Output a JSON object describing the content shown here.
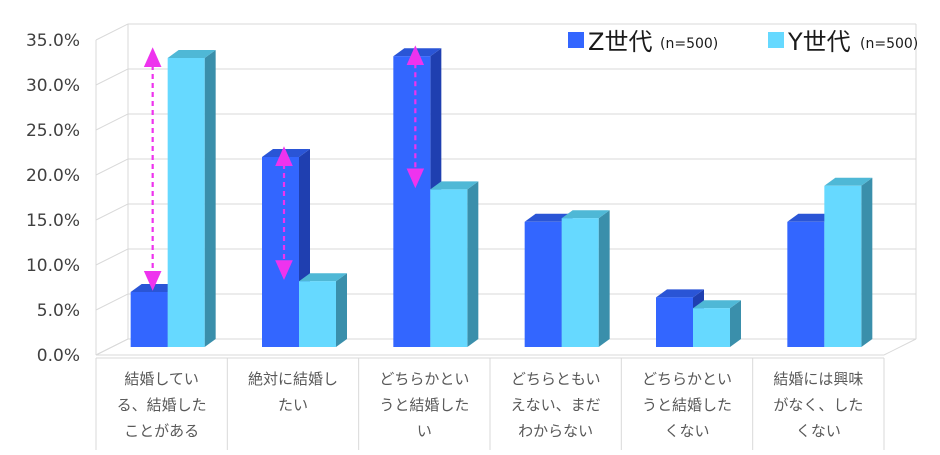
{
  "chart_data": {
    "type": "bar",
    "categories": [
      [
        "結婚してい",
        "る、結婚した",
        "ことがある"
      ],
      [
        "絶対に結婚し",
        "たい"
      ],
      [
        "どちらかとい",
        "うと結婚した",
        "い"
      ],
      [
        "どちらともい",
        "えない、まだ",
        "わからない"
      ],
      [
        "どちらかとい",
        "うと結婚した",
        "くない"
      ],
      [
        "結婚には興味",
        "がなく、した",
        "くない"
      ]
    ],
    "series": [
      {
        "name": "Z世代",
        "note": "(n=500)",
        "values": [
          7.0,
          22.0,
          33.2,
          14.8,
          6.4,
          14.8
        ]
      },
      {
        "name": "Y世代",
        "note": "(n=500)",
        "values": [
          33.0,
          8.2,
          18.4,
          15.2,
          5.2,
          18.8
        ]
      }
    ],
    "ylim": [
      0,
      35
    ],
    "yticks": [
      "0.0%",
      "5.0%",
      "10.0%",
      "15.0%",
      "20.0%",
      "25.0%",
      "30.0%",
      "35.0%"
    ],
    "colors": {
      "z_front": "#3366ff",
      "z_side": "#1f3fb0",
      "z_top": "#2a55d6",
      "y_front": "#66d9ff",
      "y_side": "#3a8fab",
      "y_top": "#4fb8d6",
      "arrow": "#ee33ee",
      "grid": "#d9d9d9"
    },
    "gap_arrows": [
      0,
      1,
      2
    ]
  }
}
